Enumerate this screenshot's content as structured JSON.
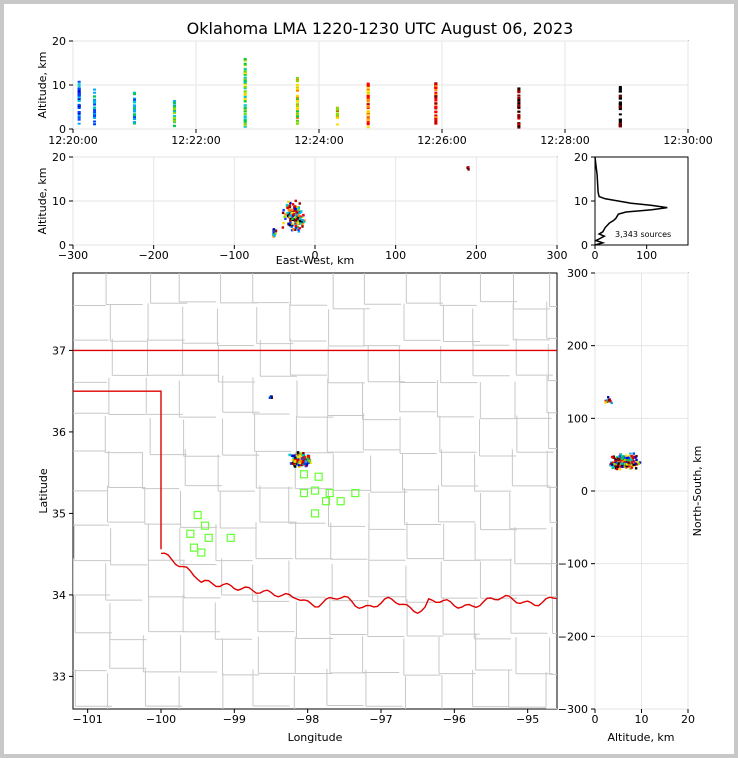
{
  "title": "Oklahoma LMA 1220-1230 UTC August 06, 2023",
  "source_count_label": "3,343 sources",
  "chart_data": [
    {
      "id": "time_altitude",
      "type": "scatter",
      "ylabel": "Altitude, km",
      "ylim": [
        0,
        20
      ],
      "yticks": [
        "0",
        "10",
        "20"
      ],
      "xlim_min": [
        0,
        10
      ],
      "xticks": [
        "12:20:00",
        "12:22:00",
        "12:24:00",
        "12:26:00",
        "12:28:00",
        "12:30:00"
      ],
      "grid": true,
      "columns": [
        {
          "t": 0.1,
          "zmin": 1,
          "zmax": 11
        },
        {
          "t": 0.35,
          "zmin": 1,
          "zmax": 9
        },
        {
          "t": 1.0,
          "zmin": 0.5,
          "zmax": 8.5
        },
        {
          "t": 1.65,
          "zmin": 0.5,
          "zmax": 6.5
        },
        {
          "t": 2.8,
          "zmin": 0.3,
          "zmax": 16
        },
        {
          "t": 3.65,
          "zmin": 1,
          "zmax": 12
        },
        {
          "t": 4.3,
          "zmin": 1,
          "zmax": 5
        },
        {
          "t": 4.8,
          "zmin": 0.3,
          "zmax": 11
        },
        {
          "t": 5.9,
          "zmin": 0.3,
          "zmax": 10.5
        },
        {
          "t": 7.25,
          "zmin": 0.3,
          "zmax": 9.5
        },
        {
          "t": 8.9,
          "zmin": 0.5,
          "zmax": 10
        }
      ]
    },
    {
      "id": "ew_altitude",
      "type": "scatter",
      "xlabel": "East-West, km",
      "ylabel": "Altitude, km",
      "xlim": [
        -300,
        300
      ],
      "ylim": [
        0,
        20
      ],
      "xticks": [
        "−300",
        "−200",
        "−100",
        "0",
        "100",
        "200",
        "300"
      ],
      "yticks": [
        "0",
        "10",
        "20"
      ],
      "grid": true,
      "clusters": [
        {
          "x": -25,
          "y": 6.5,
          "sx": 10,
          "sy": 2.5,
          "n": 160
        },
        {
          "x": -50,
          "y": 3,
          "sx": 3,
          "sy": 1,
          "n": 12
        },
        {
          "x": 190,
          "y": 17.5,
          "sx": 2,
          "sy": 0.5,
          "n": 4
        }
      ]
    },
    {
      "id": "altitude_histogram",
      "type": "line",
      "ylim": [
        0,
        20
      ],
      "xlim": [
        0,
        180
      ],
      "xticks": [
        "0",
        "100"
      ],
      "yticks": [
        "0",
        "10",
        "20"
      ],
      "points": [
        [
          0,
          20
        ],
        [
          2,
          18
        ],
        [
          4,
          16
        ],
        [
          5,
          14
        ],
        [
          6,
          12
        ],
        [
          8,
          11
        ],
        [
          20,
          10.5
        ],
        [
          70,
          9.5
        ],
        [
          110,
          9
        ],
        [
          140,
          8.5
        ],
        [
          110,
          8
        ],
        [
          60,
          7.5
        ],
        [
          45,
          7
        ],
        [
          40,
          6
        ],
        [
          35,
          5.5
        ],
        [
          28,
          5
        ],
        [
          20,
          4
        ],
        [
          15,
          3
        ],
        [
          8,
          2.5
        ],
        [
          18,
          2
        ],
        [
          10,
          1.5
        ],
        [
          2,
          1
        ],
        [
          15,
          0.5
        ],
        [
          0,
          0
        ]
      ]
    },
    {
      "id": "plan_view",
      "type": "scatter",
      "xlabel": "Longitude",
      "ylabel": "Latitude",
      "xlim": [
        -101.2,
        -94.6
      ],
      "ylim": [
        32.6,
        37.95
      ],
      "xticks": [
        "−101",
        "−100",
        "−99",
        "−98",
        "−97",
        "−96",
        "−95"
      ],
      "yticks": [
        "33",
        "34",
        "35",
        "36",
        "37"
      ],
      "clusters": [
        {
          "x": -98.1,
          "y": 35.65,
          "sx": 0.1,
          "sy": 0.07,
          "n": 180
        },
        {
          "x": -98.5,
          "y": 36.42,
          "sx": 0.02,
          "sy": 0.02,
          "n": 5
        }
      ],
      "stations": [
        [
          -99.5,
          34.98
        ],
        [
          -99.4,
          34.85
        ],
        [
          -99.35,
          34.7
        ],
        [
          -99.6,
          34.75
        ],
        [
          -99.55,
          34.58
        ],
        [
          -99.45,
          34.52
        ],
        [
          -99.05,
          34.7
        ],
        [
          -98.05,
          35.48
        ],
        [
          -97.85,
          35.45
        ],
        [
          -98.05,
          35.25
        ],
        [
          -97.9,
          35.28
        ],
        [
          -97.7,
          35.25
        ],
        [
          -97.75,
          35.15
        ],
        [
          -97.55,
          35.15
        ],
        [
          -97.35,
          35.25
        ],
        [
          -97.9,
          35.0
        ]
      ]
    },
    {
      "id": "altitude_northsouth",
      "type": "scatter",
      "xlabel": "Altitude, km",
      "ylabel": "North-South, km",
      "xlim": [
        0,
        20
      ],
      "ylim": [
        -300,
        300
      ],
      "xticks": [
        "0",
        "10",
        "20"
      ],
      "yticks": [
        "−300",
        "−200",
        "−100",
        "0",
        "100",
        "200",
        "300"
      ],
      "grid": true,
      "clusters": [
        {
          "x": 6.5,
          "y": 40,
          "sx": 2.5,
          "sy": 8,
          "n": 180
        },
        {
          "x": 3,
          "y": 125,
          "sx": 0.8,
          "sy": 4,
          "n": 12
        }
      ]
    }
  ]
}
